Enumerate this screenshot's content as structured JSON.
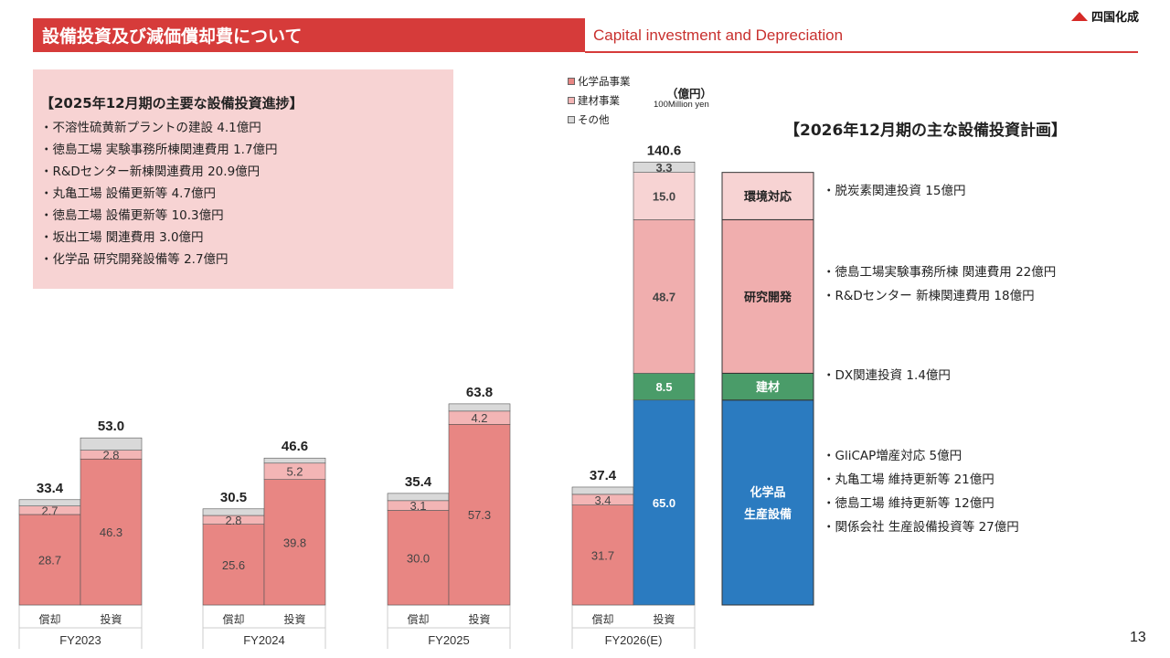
{
  "header": {
    "title_jp": "設備投資及び減価償却費について",
    "title_en": "Capital investment and Depreciation",
    "logo_text": "四国化成",
    "brand_color": "#d63b3a"
  },
  "progress": {
    "title": "【2025年12月期の主要な設備投資進捗】",
    "items": [
      "・不溶性硫黄新プラントの建設 4.1億円",
      "・徳島工場 実験事務所棟関連費用 1.7億円",
      "・R&Dセンター新棟関連費用 20.9億円",
      "・丸亀工場 設備更新等 4.7億円",
      "・徳島工場 設備更新等 10.3億円",
      "・坂出工場 関連費用 3.0億円",
      "・化学品 研究開発設備等 2.7億円"
    ]
  },
  "unit": {
    "jp": "（億円）",
    "en": "100Million yen"
  },
  "plan": {
    "title": "【2026年12月期の主な設備投資計画】",
    "segments": [
      {
        "label": "環境対応",
        "value": 15.0,
        "color": "#f7d3d3",
        "text_color": "#222222",
        "items": [
          "・脱炭素関連投資 15億円"
        ]
      },
      {
        "label": "研究開発",
        "value": 48.7,
        "color": "#f0aeae",
        "text_color": "#222222",
        "items": [
          "・徳島工場実験事務所棟 関連費用 22億円",
          "・R&Dセンター 新棟関連費用 18億円"
        ]
      },
      {
        "label": "建材",
        "value": 8.5,
        "color": "#4a9c69",
        "text_color": "#ffffff",
        "items": [
          "・DX関連投資 1.4億円"
        ]
      },
      {
        "label": "化学品\n生産設備",
        "value": 65.0,
        "color": "#2b7bc0",
        "text_color": "#ffffff",
        "items": [
          "・GliCAP増産対応 5億円",
          "・丸亀工場 維持更新等 21億円",
          "・徳島工場 維持更新等 12億円",
          "・関係会社 生産設備投資等 27億円"
        ]
      }
    ]
  },
  "chart_data": {
    "type": "bar",
    "stacked": true,
    "legend": [
      {
        "name": "化学品事業",
        "color": "#e88683"
      },
      {
        "name": "建材事業",
        "color": "#f3b5b5"
      },
      {
        "name": "その他",
        "color": "#d9d9d9"
      }
    ],
    "bar_labels": [
      "償却",
      "投資"
    ],
    "groups": [
      {
        "label": "FY2023",
        "bars": [
          {
            "total": "33.4",
            "segments": [
              {
                "value": 28.7,
                "label": "28.7",
                "color": "#e88683"
              },
              {
                "value": 2.7,
                "label": "2.7",
                "color": "#f3b5b5"
              },
              {
                "value": 2.0,
                "label": "",
                "color": "#d9d9d9"
              }
            ]
          },
          {
            "total": "53.0",
            "segments": [
              {
                "value": 46.3,
                "label": "46.3",
                "color": "#e88683"
              },
              {
                "value": 2.8,
                "label": "2.8",
                "color": "#f3b5b5"
              },
              {
                "value": 3.9,
                "label": "",
                "color": "#d9d9d9"
              }
            ]
          }
        ]
      },
      {
        "label": "FY2024",
        "bars": [
          {
            "total": "30.5",
            "segments": [
              {
                "value": 25.6,
                "label": "25.6",
                "color": "#e88683"
              },
              {
                "value": 2.8,
                "label": "2.8",
                "color": "#f3b5b5"
              },
              {
                "value": 2.1,
                "label": "",
                "color": "#d9d9d9"
              }
            ]
          },
          {
            "total": "46.6",
            "segments": [
              {
                "value": 39.8,
                "label": "39.8",
                "color": "#e88683"
              },
              {
                "value": 5.2,
                "label": "5.2",
                "color": "#f3b5b5"
              },
              {
                "value": 1.6,
                "label": "",
                "color": "#d9d9d9"
              }
            ]
          }
        ]
      },
      {
        "label": "FY2025",
        "bars": [
          {
            "total": "35.4",
            "segments": [
              {
                "value": 30.0,
                "label": "30.0",
                "color": "#e88683"
              },
              {
                "value": 3.1,
                "label": "3.1",
                "color": "#f3b5b5"
              },
              {
                "value": 2.3,
                "label": "",
                "color": "#d9d9d9"
              }
            ]
          },
          {
            "total": "63.8",
            "segments": [
              {
                "value": 57.3,
                "label": "57.3",
                "color": "#e88683"
              },
              {
                "value": 4.2,
                "label": "4.2",
                "color": "#f3b5b5"
              },
              {
                "value": 2.3,
                "label": "",
                "color": "#d9d9d9"
              }
            ]
          }
        ]
      },
      {
        "label": "FY2026(E)",
        "bars": [
          {
            "total": "37.4",
            "segments": [
              {
                "value": 31.7,
                "label": "31.7",
                "color": "#e88683"
              },
              {
                "value": 3.4,
                "label": "3.4",
                "color": "#f3b5b5"
              },
              {
                "value": 2.3,
                "label": "",
                "color": "#d9d9d9"
              }
            ]
          },
          {
            "total": "140.6",
            "segments": [
              {
                "value": 65.0,
                "label": "65.0",
                "color": "#2b7bc0"
              },
              {
                "value": 8.5,
                "label": "8.5",
                "color": "#4a9c69"
              },
              {
                "value": 48.7,
                "label": "48.7",
                "color": "#f0aeae"
              },
              {
                "value": 15.0,
                "label": "15.0",
                "color": "#f7d3d3"
              },
              {
                "value": 3.3,
                "label": "3.3",
                "color": "#d9d9d9"
              }
            ]
          }
        ]
      }
    ]
  },
  "page_number": "13"
}
